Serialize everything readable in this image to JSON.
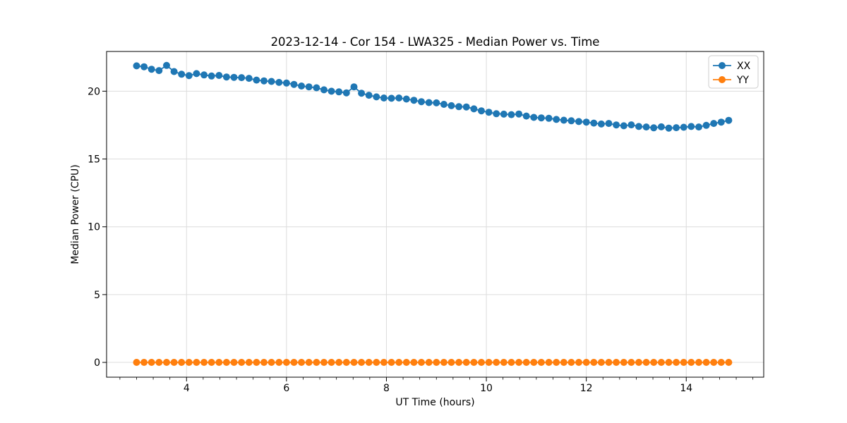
{
  "chart_data": {
    "type": "line",
    "title": "2023-12-14 - Cor 154 - LWA325 - Median Power vs. Time",
    "xlabel": "UT Time (hours)",
    "ylabel": "Median Power (CPU)",
    "xlim": [
      2.4,
      15.55
    ],
    "ylim": [
      -1.09,
      22.93
    ],
    "xticks": [
      4,
      6,
      8,
      10,
      12,
      14
    ],
    "yticks": [
      0,
      5,
      10,
      15,
      20
    ],
    "minor_xtick_interval": 0.33333,
    "grid": true,
    "marker": "circle",
    "legend": {
      "position": "upper-right",
      "entries": [
        "XX",
        "YY"
      ]
    },
    "x": [
      3.0,
      3.15,
      3.3,
      3.45,
      3.6,
      3.75,
      3.9,
      4.05,
      4.2,
      4.35,
      4.5,
      4.65,
      4.8,
      4.95,
      5.1,
      5.25,
      5.4,
      5.55,
      5.7,
      5.85,
      6.0,
      6.15,
      6.3,
      6.45,
      6.6,
      6.75,
      6.9,
      7.05,
      7.2,
      7.35,
      7.5,
      7.65,
      7.8,
      7.95,
      8.1,
      8.25,
      8.4,
      8.55,
      8.7,
      8.85,
      9.0,
      9.15,
      9.3,
      9.45,
      9.6,
      9.75,
      9.9,
      10.05,
      10.2,
      10.35,
      10.5,
      10.65,
      10.8,
      10.95,
      11.1,
      11.25,
      11.4,
      11.55,
      11.7,
      11.85,
      12.0,
      12.15,
      12.3,
      12.45,
      12.6,
      12.75,
      12.9,
      13.05,
      13.2,
      13.35,
      13.5,
      13.65,
      13.8,
      13.95,
      14.1,
      14.25,
      14.4,
      14.55,
      14.7,
      14.85
    ],
    "series": [
      {
        "name": "XX",
        "color": "#1f77b4",
        "values": [
          21.87,
          21.8,
          21.62,
          21.52,
          21.9,
          21.45,
          21.25,
          21.15,
          21.3,
          21.2,
          21.12,
          21.16,
          21.05,
          21.02,
          21.0,
          20.95,
          20.82,
          20.76,
          20.72,
          20.65,
          20.6,
          20.5,
          20.38,
          20.32,
          20.25,
          20.1,
          20.0,
          19.95,
          19.88,
          20.32,
          19.85,
          19.7,
          19.58,
          19.5,
          19.48,
          19.5,
          19.42,
          19.33,
          19.23,
          19.16,
          19.14,
          19.03,
          18.93,
          18.86,
          18.84,
          18.7,
          18.55,
          18.45,
          18.34,
          18.31,
          18.27,
          18.32,
          18.17,
          18.07,
          18.03,
          18.0,
          17.92,
          17.86,
          17.82,
          17.76,
          17.72,
          17.65,
          17.58,
          17.62,
          17.51,
          17.45,
          17.52,
          17.4,
          17.36,
          17.3,
          17.37,
          17.28,
          17.31,
          17.34,
          17.4,
          17.36,
          17.48,
          17.62,
          17.72,
          17.85
        ]
      },
      {
        "name": "YY",
        "color": "#ff7f0e",
        "values": [
          0,
          0,
          0,
          0,
          0,
          0,
          0,
          0,
          0,
          0,
          0,
          0,
          0,
          0,
          0,
          0,
          0,
          0,
          0,
          0,
          0,
          0,
          0,
          0,
          0,
          0,
          0,
          0,
          0,
          0,
          0,
          0,
          0,
          0,
          0,
          0,
          0,
          0,
          0,
          0,
          0,
          0,
          0,
          0,
          0,
          0,
          0,
          0,
          0,
          0,
          0,
          0,
          0,
          0,
          0,
          0,
          0,
          0,
          0,
          0,
          0,
          0,
          0,
          0,
          0,
          0,
          0,
          0,
          0,
          0,
          0,
          0,
          0,
          0,
          0,
          0,
          0,
          0,
          0,
          0
        ]
      }
    ],
    "colors": {
      "grid": "#dcdcdc",
      "spine": "#000000",
      "tick": "#000000",
      "legend_border": "#cccccc",
      "background": "#ffffff"
    }
  }
}
